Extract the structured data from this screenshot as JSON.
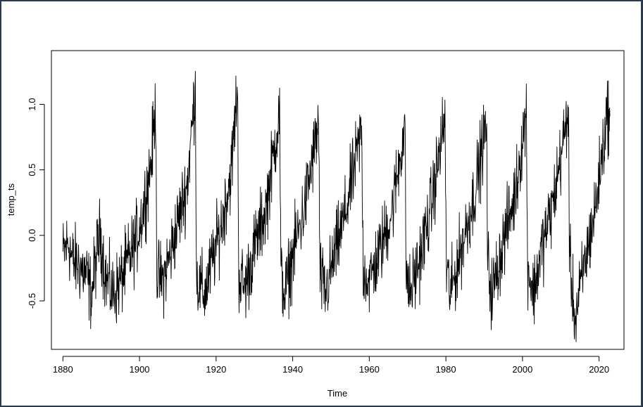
{
  "chart_data": {
    "type": "line",
    "xlabel": "Time",
    "ylabel": "temp_ts",
    "xlim": [
      1877,
      2026.5
    ],
    "ylim": [
      -0.87,
      1.41
    ],
    "x_ticks": [
      1880,
      1900,
      1920,
      1940,
      1960,
      1980,
      2000,
      2020
    ],
    "y_ticks": [
      -0.5,
      0.0,
      0.5,
      1.0
    ],
    "y_tick_labels": [
      "-0.5",
      "0.0",
      "0.5",
      "1.0"
    ],
    "x_tick_labels": [
      "1880",
      "1900",
      "1920",
      "1940",
      "1960",
      "1980",
      "2000",
      "2020"
    ],
    "grid": false,
    "line_color": "#000000",
    "series": [
      {
        "x_start": 1880,
        "frequency": "monthly",
        "anchors": [
          [
            1880.0,
            -0.15
          ],
          [
            1881.5,
            -0.05
          ],
          [
            1882.5,
            -0.2
          ],
          [
            1884.0,
            -0.22
          ],
          [
            1886.0,
            -0.3
          ],
          [
            1887.5,
            -0.45
          ],
          [
            1889.0,
            -0.1
          ],
          [
            1889.8,
            0.02
          ],
          [
            1891.0,
            -0.3
          ],
          [
            1893.0,
            -0.45
          ],
          [
            1895.0,
            -0.35
          ],
          [
            1897.0,
            -0.2
          ],
          [
            1899.0,
            -0.05
          ],
          [
            1901.0,
            0.2
          ],
          [
            1903.0,
            0.55
          ],
          [
            1904.3,
            1.0
          ],
          [
            1904.5,
            -0.3
          ],
          [
            1906.0,
            -0.35
          ],
          [
            1908.0,
            -0.15
          ],
          [
            1910.0,
            0.1
          ],
          [
            1912.5,
            0.4
          ],
          [
            1914.6,
            1.15
          ],
          [
            1914.9,
            -0.35
          ],
          [
            1917.0,
            -0.45
          ],
          [
            1919.0,
            -0.2
          ],
          [
            1921.5,
            0.1
          ],
          [
            1924.0,
            0.5
          ],
          [
            1925.6,
            1.15
          ],
          [
            1925.9,
            -0.3
          ],
          [
            1927.5,
            -0.4
          ],
          [
            1930.0,
            -0.1
          ],
          [
            1933.0,
            0.2
          ],
          [
            1936.6,
            0.95
          ],
          [
            1936.9,
            -0.3
          ],
          [
            1938.0,
            -0.45
          ],
          [
            1940.0,
            -0.15
          ],
          [
            1943.0,
            0.2
          ],
          [
            1946.8,
            0.85
          ],
          [
            1947.1,
            -0.3
          ],
          [
            1948.5,
            -0.45
          ],
          [
            1951.0,
            -0.15
          ],
          [
            1954.0,
            0.2
          ],
          [
            1958.0,
            0.8
          ],
          [
            1958.4,
            -0.25
          ],
          [
            1960.0,
            -0.35
          ],
          [
            1963.0,
            -0.1
          ],
          [
            1966.0,
            0.2
          ],
          [
            1969.3,
            0.85
          ],
          [
            1969.6,
            -0.25
          ],
          [
            1970.5,
            -0.45
          ],
          [
            1973.0,
            -0.2
          ],
          [
            1976.0,
            0.2
          ],
          [
            1979.8,
            0.9
          ],
          [
            1980.1,
            -0.25
          ],
          [
            1981.2,
            -0.45
          ],
          [
            1984.0,
            -0.1
          ],
          [
            1987.0,
            0.25
          ],
          [
            1990.6,
            0.85
          ],
          [
            1990.9,
            -0.2
          ],
          [
            1992.0,
            -0.45
          ],
          [
            1995.0,
            -0.05
          ],
          [
            1998.0,
            0.3
          ],
          [
            2001.0,
            0.95
          ],
          [
            2001.3,
            -0.2
          ],
          [
            2002.8,
            -0.45
          ],
          [
            2005.0,
            -0.1
          ],
          [
            2008.0,
            0.25
          ],
          [
            2012.0,
            0.95
          ],
          [
            2012.3,
            -0.2
          ],
          [
            2013.8,
            -0.65
          ],
          [
            2016.0,
            -0.25
          ],
          [
            2019.0,
            0.2
          ],
          [
            2022.2,
            0.95
          ],
          [
            2022.9,
            0.85
          ]
        ],
        "noise_amplitude": 0.14
      }
    ]
  }
}
